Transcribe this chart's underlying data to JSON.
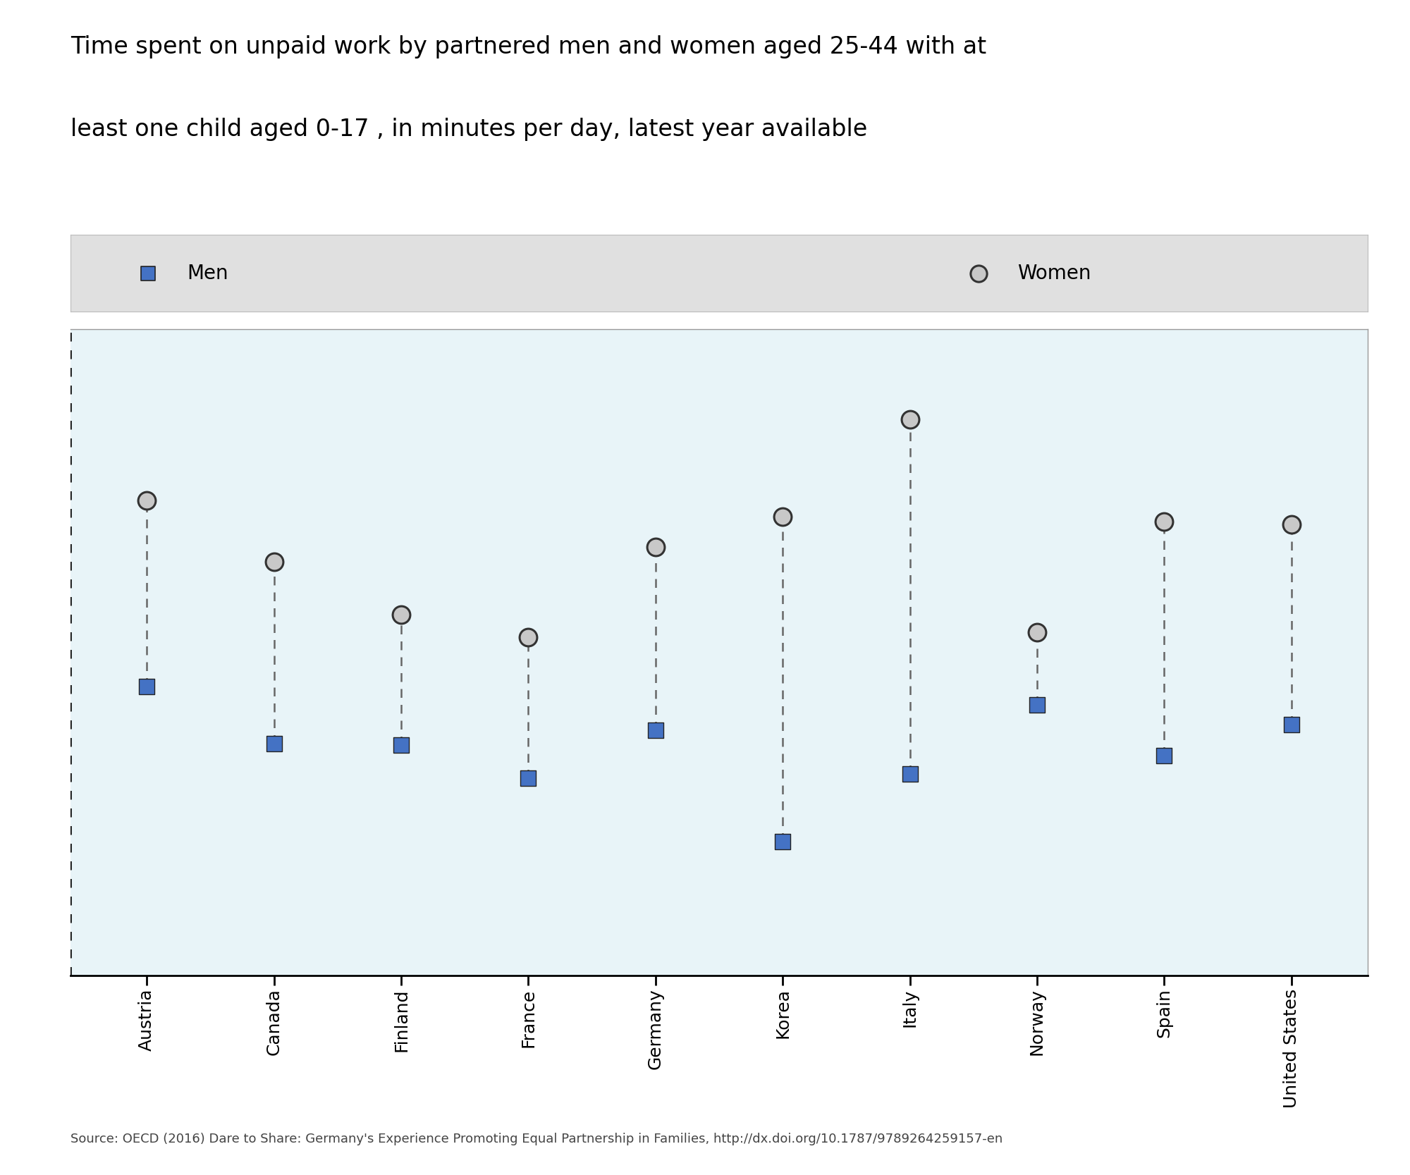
{
  "countries": [
    "Austria",
    "Canada",
    "Finland",
    "France",
    "Germany",
    "Korea",
    "Italy",
    "Norway",
    "Spain",
    "United States"
  ],
  "men": [
    192,
    154,
    153,
    131,
    163,
    89,
    134,
    180,
    146,
    167
  ],
  "women": [
    316,
    275,
    240,
    225,
    285,
    305,
    370,
    228,
    302,
    300
  ],
  "title_line1": "Time spent on unpaid work by partnered men and women aged 25-44 with at",
  "title_line2": "least one child aged 0-17 , in minutes per day, latest year available",
  "source": "Source: OECD (2016) Dare to Share: Germany's Experience Promoting Equal Partnership in Families, http://dx.doi.org/10.1787/9789264259157-en",
  "men_color": "#4472C4",
  "women_fill": "#C8C8C8",
  "women_edge": "#333333",
  "line_color": "#666666",
  "plot_bg": "#E8F4F8",
  "legend_bg": "#E0E0E0",
  "title_fontsize": 24,
  "source_fontsize": 13,
  "tick_fontsize": 18,
  "legend_fontsize": 20,
  "ylim": [
    0,
    430
  ],
  "figsize": [
    20.0,
    16.67
  ]
}
